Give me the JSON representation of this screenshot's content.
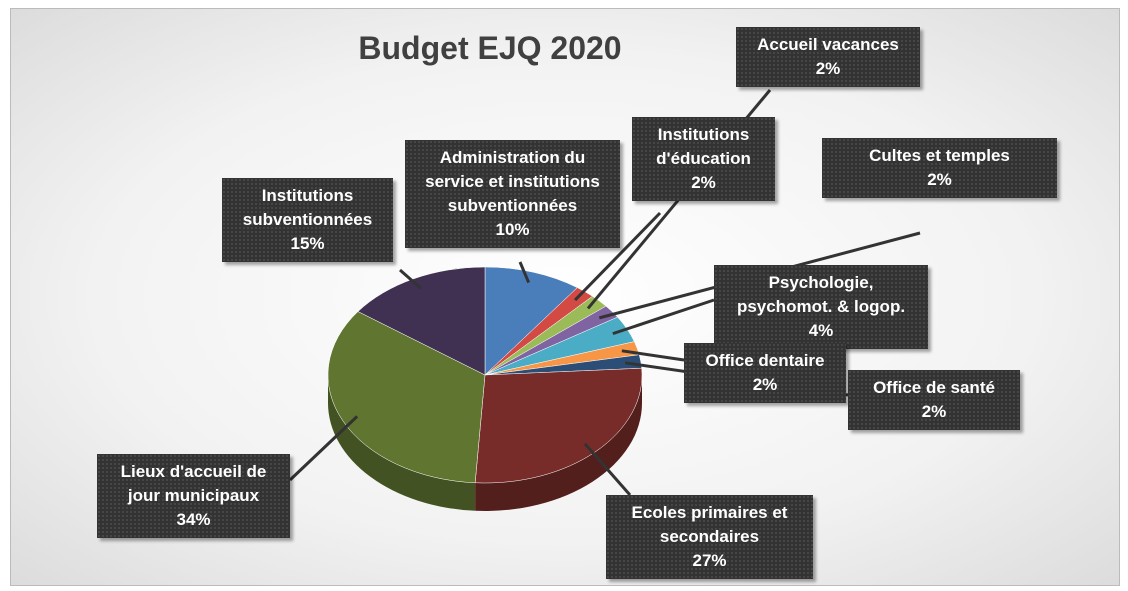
{
  "chart_data": {
    "type": "pie",
    "title": "Budget EJQ 2020",
    "categories": [
      "Administration du service et institutions subventionnées",
      "Institutions d'éducation",
      "Accueil vacances",
      "Cultes et temples",
      "Psychologie, psychomot. & logop.",
      "Office dentaire",
      "Office de santé",
      "Ecoles primaires et secondaires",
      "Lieux d'accueil de jour municipaux",
      "Institutions subventionnées"
    ],
    "values": [
      10,
      2,
      2,
      2,
      4,
      2,
      2,
      27,
      34,
      15
    ],
    "value_labels": [
      "10%",
      "2%",
      "2%",
      "2%",
      "4%",
      "2%",
      "2%",
      "27%",
      "34%",
      "15%"
    ],
    "colors": [
      "#4a7ebb",
      "#d24a43",
      "#9bbb59",
      "#8064a2",
      "#4bacc6",
      "#f79646",
      "#2c4d75",
      "#772c2a",
      "#5f7530",
      "#403152"
    ]
  }
}
